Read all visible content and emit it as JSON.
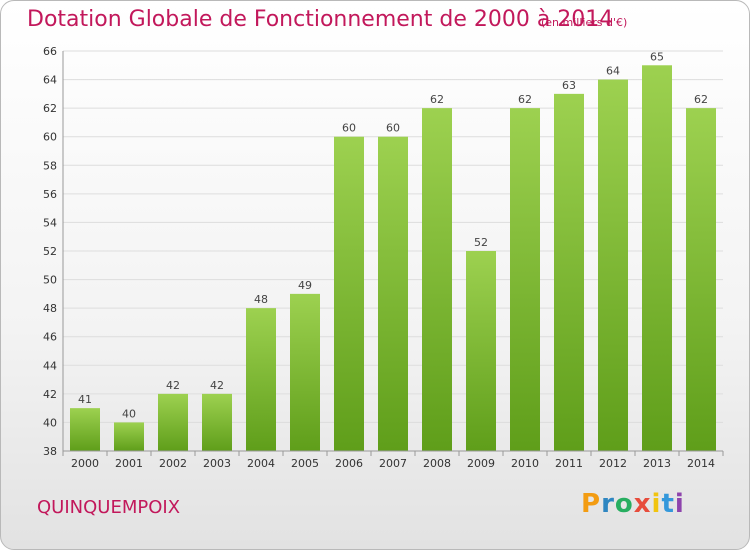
{
  "chart_data": {
    "type": "bar",
    "title": "Dotation Globale de Fonctionnement de 2000 à 2014",
    "subtitle": "(en milliers d'€)",
    "categories": [
      "2000",
      "2001",
      "2002",
      "2003",
      "2004",
      "2005",
      "2006",
      "2007",
      "2008",
      "2009",
      "2010",
      "2011",
      "2012",
      "2013",
      "2014"
    ],
    "values": [
      41,
      40,
      42,
      42,
      48,
      49,
      60,
      60,
      62,
      52,
      62,
      63,
      64,
      65,
      62
    ],
    "ylim": [
      38,
      66
    ],
    "yticks": [
      38,
      40,
      42,
      44,
      46,
      48,
      50,
      52,
      54,
      56,
      58,
      60,
      62,
      64,
      66
    ],
    "grid": true,
    "bar_color": "#7cb82f",
    "title_color": "#c2185b"
  },
  "place_name": "QUINQUEMPOIX",
  "logo": {
    "letters": [
      "P",
      "r",
      "o",
      "x",
      "i",
      "t",
      "i"
    ],
    "colors": [
      "#f39c12",
      "#2e86c1",
      "#27ae60",
      "#e74c3c",
      "#f1c40f",
      "#3498db",
      "#8e44ad"
    ]
  }
}
